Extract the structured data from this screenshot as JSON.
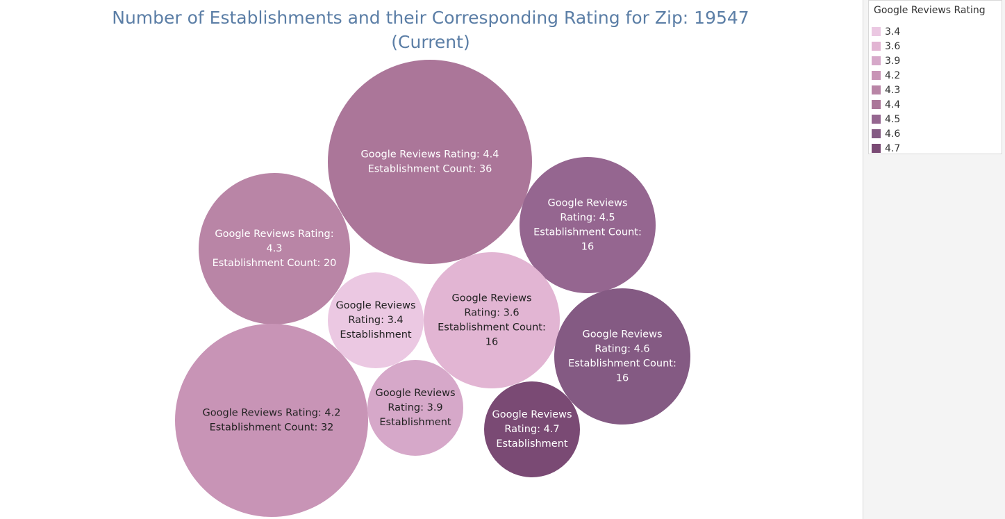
{
  "chart_data": {
    "type": "packed-bubble",
    "title": "Number of Establishments and their Corresponding Rating for Zip: 19547\n(Current)",
    "size_field": "Establishment Count",
    "color_field": "Google Reviews Rating",
    "bubbles": [
      {
        "rating": "4.4",
        "count": 36,
        "color": "#ab7699",
        "label": [
          "Google Reviews Rating: 4.4",
          "Establishment Count: 36"
        ],
        "text_color": "#ffffff"
      },
      {
        "rating": "4.3",
        "count": 20,
        "color": "#b985a6",
        "label": [
          "Google Reviews Rating:",
          "4.3",
          "Establishment Count: 20"
        ],
        "text_color": "#ffffff"
      },
      {
        "rating": "4.5",
        "count": 16,
        "color": "#956690",
        "label": [
          "Google Reviews",
          "Rating: 4.5",
          "Establishment Count:",
          "16"
        ],
        "text_color": "#ffffff"
      },
      {
        "rating": "3.4",
        "count": null,
        "color": "#ebc8e2",
        "label": [
          "Google Reviews",
          "Rating: 3.4",
          "Establishment"
        ],
        "text_color": "#222222"
      },
      {
        "rating": "3.6",
        "count": 16,
        "color": "#e2b5d3",
        "label": [
          "Google Reviews",
          "Rating: 3.6",
          "Establishment Count:",
          "16"
        ],
        "text_color": "#222222"
      },
      {
        "rating": "4.6",
        "count": 16,
        "color": "#845a83",
        "label": [
          "Google Reviews",
          "Rating: 4.6",
          "Establishment Count:",
          "16"
        ],
        "text_color": "#ffffff"
      },
      {
        "rating": "4.2",
        "count": 32,
        "color": "#c894b6",
        "label": [
          "Google Reviews Rating: 4.2",
          "Establishment Count: 32"
        ],
        "text_color": "#222222"
      },
      {
        "rating": "3.9",
        "count": null,
        "color": "#d6a8c9",
        "label": [
          "Google Reviews",
          "Rating: 3.9",
          "Establishment"
        ],
        "text_color": "#222222"
      },
      {
        "rating": "4.7",
        "count": null,
        "color": "#7a4a74",
        "label": [
          "Google Reviews",
          "Rating: 4.7",
          "Establishment"
        ],
        "text_color": "#ffffff"
      }
    ],
    "legend": {
      "title": "Google Reviews Rating",
      "placement": "right",
      "items": [
        {
          "label": "3.4",
          "color": "#ebc8e2"
        },
        {
          "label": "3.6",
          "color": "#e2b5d3"
        },
        {
          "label": "3.9",
          "color": "#d6a8c9"
        },
        {
          "label": "4.2",
          "color": "#c894b6"
        },
        {
          "label": "4.3",
          "color": "#b985a6"
        },
        {
          "label": "4.4",
          "color": "#ab7699"
        },
        {
          "label": "4.5",
          "color": "#956690"
        },
        {
          "label": "4.6",
          "color": "#845a83"
        },
        {
          "label": "4.7",
          "color": "#7a4a74"
        }
      ]
    }
  }
}
